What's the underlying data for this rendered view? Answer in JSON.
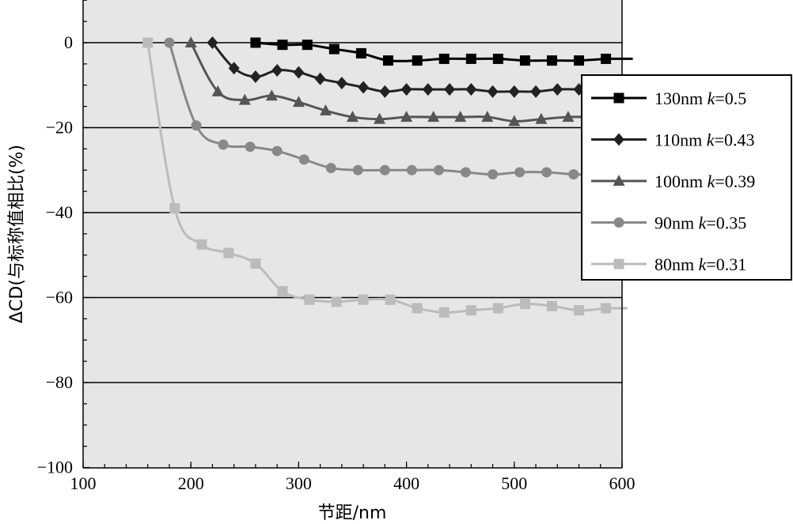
{
  "chart_data": {
    "type": "line",
    "title": "",
    "xlabel": "节距/nm",
    "ylabel": "ΔCD(与标称值相比(%)",
    "xlim": [
      100,
      600
    ],
    "ylim": [
      -100,
      10
    ],
    "x_ticks": [
      "100",
      "200",
      "300",
      "400",
      "500",
      "600"
    ],
    "y_ticks": [
      "0",
      "−20",
      "−40",
      "−60",
      "−80",
      "−100"
    ],
    "grid": "horizontal major",
    "legend_position": "right",
    "series": [
      {
        "name": "130nm k=0.5",
        "label_prefix": "130nm ",
        "label_k": "k",
        "label_suffix": "=0.5",
        "color": "#000000",
        "marker": "square",
        "x": [
          260,
          285,
          308,
          333,
          358,
          383,
          410,
          435,
          460,
          485,
          510,
          535,
          560,
          585
        ],
        "y": [
          0,
          -0.5,
          -0.5,
          -1.5,
          -2.5,
          -4.2,
          -4.2,
          -3.8,
          -3.8,
          -3.8,
          -4.2,
          -4.2,
          -4.2,
          -3.8
        ],
        "tail": [
          [
            585,
            -3.8
          ],
          [
            610,
            -3.8
          ]
        ]
      },
      {
        "name": "110nm k=0.43",
        "label_prefix": "110nm ",
        "label_k": "k",
        "label_suffix": "=0.43",
        "color": "#222222",
        "marker": "diamond",
        "x": [
          220,
          240,
          260,
          280,
          300,
          320,
          340,
          360,
          380,
          400,
          420,
          440,
          460,
          480,
          500,
          520,
          540,
          560
        ],
        "y": [
          0,
          -6,
          -8,
          -6.5,
          -7,
          -8.5,
          -9.5,
          -10.5,
          -11.5,
          -11,
          -11,
          -11,
          -11,
          -11.5,
          -11.5,
          -11.5,
          -11,
          -11
        ]
      },
      {
        "name": "100nm k=0.39",
        "label_prefix": "100nm ",
        "label_k": "k",
        "label_suffix": "=0.39",
        "color": "#555555",
        "marker": "triangle",
        "x": [
          200,
          225,
          250,
          275,
          300,
          325,
          350,
          375,
          400,
          425,
          450,
          475,
          500,
          525,
          550,
          575
        ],
        "y": [
          0,
          -11.5,
          -13.5,
          -12.5,
          -14,
          -16,
          -17.5,
          -18,
          -17.5,
          -17.5,
          -17.5,
          -17.5,
          -18.5,
          -18,
          -17.5,
          -17.5
        ]
      },
      {
        "name": "90nm k=0.35",
        "label_prefix": "90nm ",
        "label_k": "k",
        "label_suffix": "=0.35",
        "color": "#888888",
        "marker": "circle",
        "x": [
          180,
          205,
          230,
          255,
          280,
          305,
          330,
          355,
          380,
          405,
          430,
          455,
          480,
          505,
          530,
          555,
          580
        ],
        "y": [
          0,
          -19.5,
          -24,
          -24.5,
          -25.5,
          -27.5,
          -29.5,
          -30,
          -30,
          -30,
          -30,
          -30.5,
          -31,
          -30.5,
          -30.5,
          -31,
          -31
        ]
      },
      {
        "name": "80nm k=0.31",
        "label_prefix": "80nm ",
        "label_k": "k",
        "label_suffix": "=0.31",
        "color": "#bbbbbb",
        "marker": "square",
        "x": [
          160,
          185,
          210,
          235,
          260,
          285,
          310,
          335,
          360,
          385,
          410,
          435,
          460,
          485,
          510,
          535,
          560,
          585
        ],
        "y": [
          0,
          -39,
          -47.5,
          -49.5,
          -52,
          -58.5,
          -60.5,
          -61,
          -60.5,
          -60.5,
          -62.5,
          -63.5,
          -63,
          -62.5,
          -61.5,
          -62,
          -63,
          -62.5
        ],
        "tail": [
          [
            585,
            -62.5
          ],
          [
            605,
            -62.5
          ]
        ]
      }
    ]
  }
}
